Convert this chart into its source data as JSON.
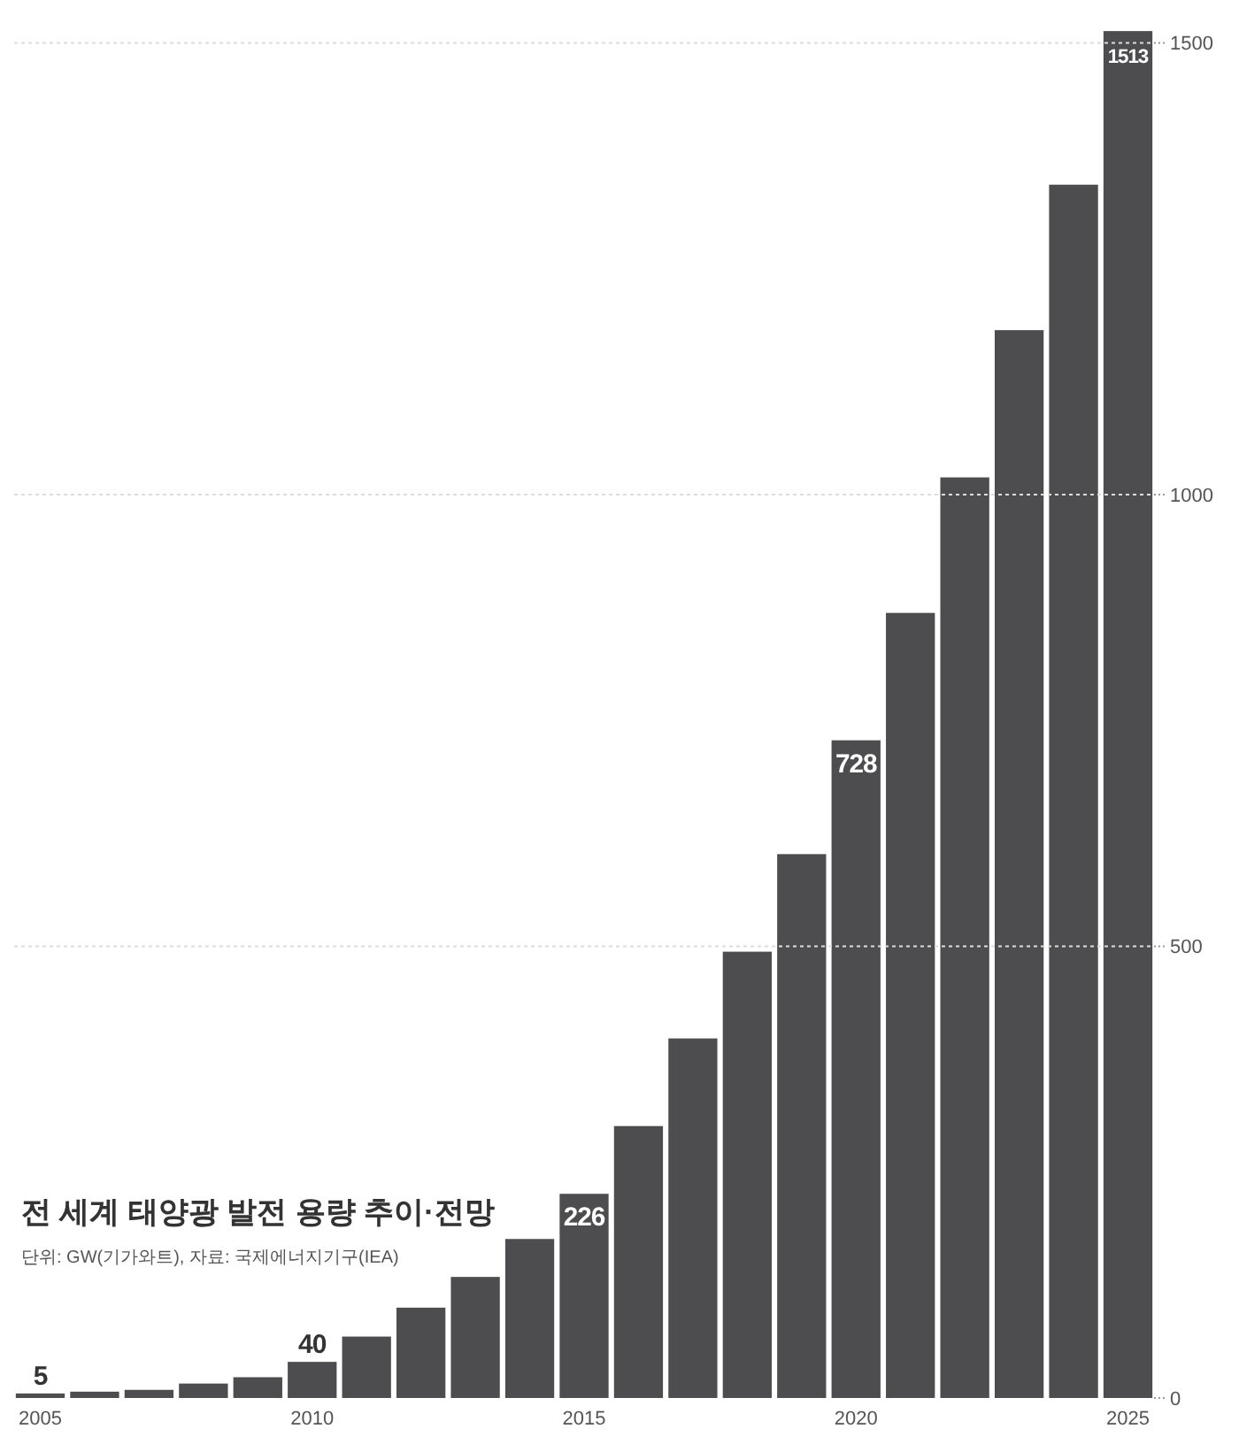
{
  "chart_data": {
    "type": "bar",
    "title": "전 세계 태양광 발전 용량 추이·전망",
    "subtitle": "단위: GW(기가와트), 자료: 국제에너지기구(IEA)",
    "categories": [
      "2005",
      null,
      null,
      null,
      null,
      "2010",
      null,
      null,
      null,
      null,
      "2015",
      null,
      null,
      null,
      null,
      "2020",
      null,
      null,
      null,
      null,
      "2025"
    ],
    "values": [
      5,
      7,
      9,
      16,
      23,
      40,
      68,
      100,
      134,
      176,
      226,
      301,
      398,
      494,
      602,
      728,
      869,
      1019,
      1182,
      1343,
      1513
    ],
    "value_labels": [
      "5",
      null,
      null,
      null,
      null,
      "40",
      null,
      null,
      null,
      null,
      "226",
      null,
      null,
      null,
      null,
      "728",
      null,
      null,
      null,
      null,
      "1513"
    ],
    "color": "#4d4d4f",
    "ylim": [
      0,
      1520
    ],
    "yticks": [
      0,
      500,
      1000,
      1500
    ],
    "grid": "y"
  }
}
